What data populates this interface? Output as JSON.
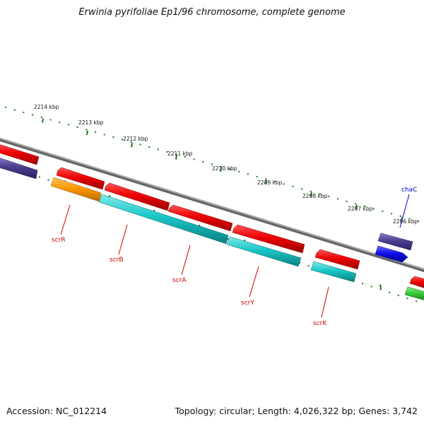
{
  "title": "Erwinia pyrifoliae Ep1/96 chromosome, complete genome",
  "footer": {
    "accession": "Accession: NC_012214",
    "summary": "Topology: circular; Length: 4,026,322 bp; Genes: 3,742"
  },
  "ruler": {
    "tick_labels": [
      "2214 kbp",
      "2213 kbp",
      "2212 kbp",
      "2211 kbp",
      "2210 kbp",
      "2209 kbp",
      "2208 kbp",
      "2207 kbp",
      "2206 kbp"
    ]
  },
  "gene_labels": [
    {
      "name": "scrR",
      "color": "#d00000"
    },
    {
      "name": "scrB",
      "color": "#d00000"
    },
    {
      "name": "scrA",
      "color": "#d00000"
    },
    {
      "name": "scrY",
      "color": "#d00000"
    },
    {
      "name": "scrK",
      "color": "#d00000"
    },
    {
      "name": "chaC",
      "color": "#0000cc"
    }
  ],
  "colors": {
    "backbone": "#808080",
    "cds_red": "#ee0000",
    "cds_teal": "#19c7c7",
    "cds_orange": "#ff9900",
    "cds_indigo": "#4a3f8f",
    "cds_blue": "#1010ee",
    "cds_green": "#33cc33",
    "tick_green": "#1a7a1a",
    "label_red": "#d00000",
    "label_blue": "#0000cc"
  }
}
